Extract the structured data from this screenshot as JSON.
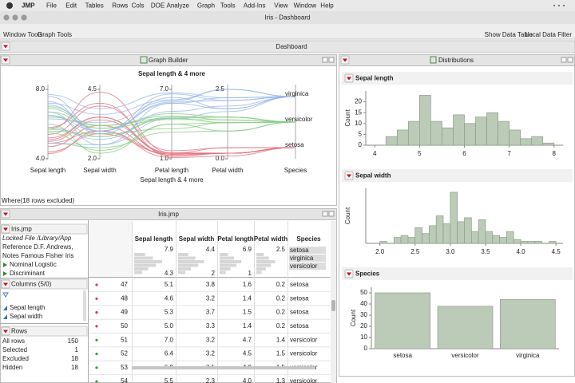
{
  "menu": {
    "app": "JMP",
    "items": [
      "File",
      "Edit",
      "Tables",
      "Rows",
      "Cols",
      "DOE",
      "Analyze",
      "Graph",
      "Tools",
      "Add-Ins",
      "View",
      "Window",
      "Help"
    ]
  },
  "window": {
    "title": "Iris - Dashboard",
    "toolbar_left": [
      "Window Tools",
      "Graph Tools"
    ],
    "toolbar_right": [
      "Show Data Table",
      "Local Data Filter"
    ]
  },
  "dashboard": {
    "title": "Dashboard"
  },
  "graph_builder": {
    "panel_title": "Graph Builder",
    "chart": {
      "type": "parallel",
      "title": "Sepal length & 4 more",
      "x_label": "Sepal length & 4 more",
      "axes": [
        {
          "name": "Sepal length",
          "lim": [
            {
              "value": 4,
              "label": "4.0"
            },
            {
              "value": 8,
              "label": "8.0"
            }
          ]
        },
        {
          "name": "Sepal width",
          "lim": [
            {
              "value": 2,
              "label": "2.0"
            },
            4.5
          ]
        },
        {
          "name": "Petal length",
          "lim": [
            {
              "value": 1,
              "label": "1.0"
            },
            {
              "value": 7,
              "label": "7.0"
            }
          ]
        },
        {
          "name": "Petal width",
          "lim": [
            {
              "value": 0,
              "label": "0.0"
            },
            2.5
          ]
        },
        {
          "name": "Species"
        }
      ],
      "series": [
        {
          "name": "setosa",
          "color": "#e0707e",
          "lines": [
            [
              5.1,
              3.5,
              1.4,
              0.2
            ],
            [
              4.9,
              3.0,
              1.4,
              0.2
            ],
            [
              4.7,
              3.2,
              1.3,
              0.2
            ],
            [
              5.4,
              3.9,
              1.7,
              0.4
            ],
            [
              5.0,
              3.4,
              1.5,
              0.2
            ],
            [
              4.4,
              2.9,
              1.4,
              0.2
            ],
            [
              5.7,
              4.4,
              1.5,
              0.4
            ],
            [
              5.8,
              4.0,
              1.2,
              0.2
            ],
            [
              4.3,
              3.0,
              1.1,
              0.1
            ],
            [
              5.2,
              3.5,
              1.5,
              0.2
            ]
          ]
        },
        {
          "name": "versicolor",
          "color": "#84cc80",
          "lines": [
            [
              7.0,
              3.2,
              4.7,
              1.4
            ],
            [
              6.4,
              3.2,
              4.5,
              1.5
            ],
            [
              6.9,
              3.1,
              4.9,
              1.5
            ],
            [
              5.5,
              2.3,
              4.0,
              1.3
            ],
            [
              6.5,
              2.8,
              4.6,
              1.5
            ],
            [
              5.7,
              2.8,
              4.5,
              1.3
            ],
            [
              4.9,
              2.4,
              3.3,
              1.0
            ],
            [
              6.0,
              2.2,
              4.0,
              1.0
            ],
            [
              5.6,
              2.9,
              3.6,
              1.3
            ],
            [
              6.7,
              3.1,
              4.4,
              1.4
            ]
          ]
        },
        {
          "name": "virginica",
          "color": "#98b6ea",
          "lines": [
            [
              6.3,
              3.3,
              6.0,
              2.5
            ],
            [
              5.8,
              2.7,
              5.1,
              1.9
            ],
            [
              7.1,
              3.0,
              5.9,
              2.1
            ],
            [
              6.5,
              3.0,
              5.8,
              2.2
            ],
            [
              7.6,
              3.0,
              6.6,
              2.1
            ],
            [
              4.9,
              2.5,
              4.5,
              1.7
            ],
            [
              7.3,
              2.9,
              6.3,
              1.8
            ],
            [
              6.7,
              2.5,
              5.8,
              1.8
            ],
            [
              7.2,
              3.6,
              6.1,
              2.5
            ],
            [
              7.7,
              3.8,
              6.7,
              2.2
            ]
          ]
        }
      ]
    },
    "where": "Where(18 rows excluded)"
  },
  "distributions": {
    "panel_title": "Distributions",
    "charts": [
      {
        "type": "histogram",
        "title": "Sepal length",
        "y_label": "Count",
        "color": "#bccbb8",
        "bins": [
          4.25,
          4.5,
          4.75,
          5.0,
          5.25,
          5.5,
          5.75,
          6.0,
          6.25,
          6.5,
          6.75,
          7.0,
          7.25,
          7.5,
          7.75,
          8.0
        ],
        "values": [
          4,
          7,
          11,
          23,
          11,
          8,
          14,
          10,
          13,
          15,
          11,
          7,
          3,
          4,
          1
        ],
        "xlim": [
          3.8,
          8.2
        ],
        "xticks": [
          4,
          5,
          6,
          7,
          8
        ],
        "ylim": [
          0,
          25
        ],
        "yticks": [
          0,
          5,
          10,
          15,
          20
        ]
      },
      {
        "type": "histogram",
        "title": "Sepal width",
        "y_label": "Count",
        "color": "#bccbb8",
        "bins": [
          2.0,
          2.1,
          2.2,
          2.3,
          2.4,
          2.5,
          2.6,
          2.7,
          2.8,
          2.9,
          3.0,
          3.1,
          3.2,
          3.3,
          3.4,
          3.5,
          3.6,
          3.7,
          3.8,
          3.9,
          4.0,
          4.1,
          4.2,
          4.3,
          4.4,
          4.5
        ],
        "values": [
          1,
          0,
          3,
          4,
          3,
          8,
          5,
          9,
          14,
          10,
          26,
          11,
          13,
          6,
          12,
          6,
          4,
          3,
          6,
          2,
          1,
          1,
          1,
          0,
          1
        ],
        "xlim": [
          1.8,
          4.6
        ],
        "xticks": [
          {
            "value": 2,
            "label": "2.0"
          },
          2.5,
          {
            "value": 3,
            "label": "3.0"
          },
          3.5,
          {
            "value": 4,
            "label": "4.0"
          },
          4.5
        ],
        "ylim": [
          0,
          28
        ]
      },
      {
        "type": "bar",
        "title": "Species",
        "y_label": "Count",
        "color": "#bccbb8",
        "categories": [
          "setosa",
          "versicolor",
          "virginica"
        ],
        "values": [
          50,
          38,
          44
        ],
        "ylim": [
          0,
          55
        ],
        "yticks": [
          0,
          10,
          20,
          30,
          40,
          50
        ]
      }
    ]
  },
  "data_table": {
    "title": "Iris.jmp",
    "table_panel": {
      "name": "Iris.jmp",
      "lines": [
        "Locked File /Library/App",
        "Reference D.F. Andrews,",
        "Notes Famous Fisher Iris",
        "Nominal Logistic",
        "Discriminant"
      ]
    },
    "columns_panel": {
      "title": "Columns (5/0)",
      "items": [
        "Sepal length",
        "Sepal width"
      ]
    },
    "rows_panel": {
      "title": "Rows",
      "items": [
        [
          "All rows",
          "150"
        ],
        [
          "Selected",
          "1"
        ],
        [
          "Excluded",
          "18"
        ],
        [
          "Hidden",
          "18"
        ]
      ]
    },
    "columns": [
      "Sepal length",
      "Sepal width",
      "Petal length",
      "Petal width",
      "Species"
    ],
    "summary": [
      {
        "max": "7.9",
        "min": "4.3"
      },
      {
        "max": "4.4",
        "min": "2"
      },
      {
        "max": "6.9",
        "min": "1"
      },
      {
        "max": "2.5"
      }
    ],
    "species_levels": [
      "setosa",
      "virginica",
      "versicolor"
    ],
    "rows": [
      [
        "47",
        "5.1",
        "3.8",
        "1.6",
        "0.2",
        "setosa"
      ],
      [
        "48",
        "4.6",
        "3.2",
        "1.4",
        "0.2",
        "setosa"
      ],
      [
        "49",
        "5.3",
        "3.7",
        "1.5",
        "0.2",
        "setosa"
      ],
      [
        "50",
        "5.0",
        "3.3",
        "1.4",
        "0.2",
        "setosa"
      ],
      [
        "51",
        "7.0",
        "3.2",
        "4.7",
        "1.4",
        "versicolor"
      ],
      [
        "52",
        "6.4",
        "3.2",
        "4.5",
        "1.5",
        "versicolor"
      ],
      [
        "53",
        "6.9",
        "3.1",
        "4.9",
        "1.5",
        "versicolor"
      ],
      [
        "54",
        "5.5",
        "2.3",
        "4.0",
        "1.3",
        "versicolor"
      ]
    ]
  }
}
